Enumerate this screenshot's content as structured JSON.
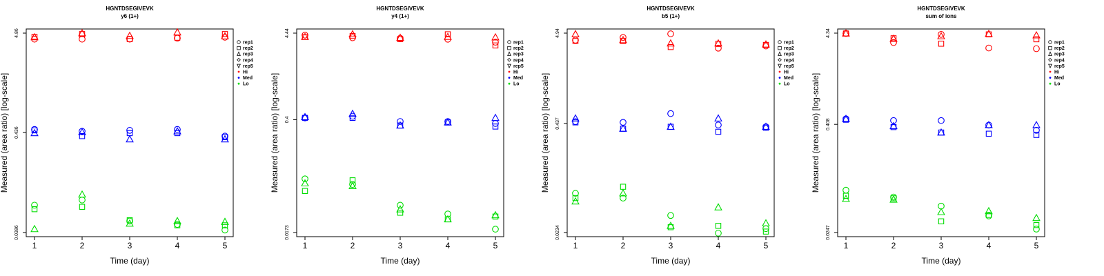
{
  "colors": {
    "Hi": "#ff0000",
    "Med": "#0000ff",
    "Lo": "#00dd00",
    "axis": "#000000"
  },
  "chart_data": [
    {
      "type": "scatter",
      "title": "HGNTDSEGIVEVK",
      "subtitle": "y6 (1+)",
      "xlabel": "Time (day)",
      "ylabel": "Measured (area ratio) [log-scale]",
      "x_ticks": [
        "1",
        "2",
        "3",
        "4",
        "5"
      ],
      "y_ticks": [
        "0.0386",
        "0.436",
        "4.86"
      ],
      "ylim": [
        0.0386,
        4.86
      ],
      "legend": {
        "position": "right",
        "entries": [
          {
            "label": "rep1",
            "marker": "circle"
          },
          {
            "label": "rep2",
            "marker": "square"
          },
          {
            "label": "rep3",
            "marker": "triangle-up"
          },
          {
            "label": "rep4",
            "marker": "diamond"
          },
          {
            "label": "rep5",
            "marker": "triangle-down"
          },
          {
            "label": "Hi",
            "marker": "dot",
            "color": "Hi"
          },
          {
            "label": "Med",
            "marker": "dot",
            "color": "Med"
          },
          {
            "label": "Lo",
            "marker": "dot",
            "color": "Lo"
          }
        ]
      },
      "series": [
        {
          "group": "Hi",
          "rep": "rep1",
          "values": [
            4.2,
            4.2,
            4.2,
            4.3,
            4.4
          ]
        },
        {
          "group": "Hi",
          "rep": "rep2",
          "values": [
            4.45,
            4.75,
            4.2,
            4.35,
            4.75
          ]
        },
        {
          "group": "Hi",
          "rep": "rep3",
          "values": [
            4.4,
            4.85,
            4.55,
            4.95,
            4.5
          ]
        },
        {
          "group": "Med",
          "rep": "rep1",
          "values": [
            0.47,
            0.45,
            0.46,
            0.47,
            0.4
          ]
        },
        {
          "group": "Med",
          "rep": "rep2",
          "values": [
            0.46,
            0.4,
            0.43,
            0.43,
            0.39
          ]
        },
        {
          "group": "Med",
          "rep": "rep3",
          "values": [
            0.43,
            0.44,
            0.37,
            0.45,
            0.37
          ]
        },
        {
          "group": "Lo",
          "rep": "rep1",
          "values": [
            0.075,
            0.085,
            0.051,
            0.047,
            0.041
          ]
        },
        {
          "group": "Lo",
          "rep": "rep2",
          "values": [
            0.068,
            0.072,
            0.052,
            0.046,
            0.046
          ]
        },
        {
          "group": "Lo",
          "rep": "rep3",
          "values": [
            0.042,
            0.097,
            0.048,
            0.051,
            0.05
          ]
        }
      ]
    },
    {
      "type": "scatter",
      "title": "HGNTDSEGIVEVK",
      "subtitle": "y4 (1+)",
      "xlabel": "Time (day)",
      "ylabel": "Measured (area ratio) [log-scale]",
      "x_ticks": [
        "1",
        "2",
        "3",
        "4",
        "5"
      ],
      "y_ticks": [
        "0.0173",
        "0.4",
        "4.44"
      ],
      "ylim": [
        0.0173,
        4.44
      ],
      "legend": {
        "position": "right",
        "entries": [
          {
            "label": "rep1",
            "marker": "circle"
          },
          {
            "label": "rep2",
            "marker": "square"
          },
          {
            "label": "rep3",
            "marker": "triangle-up"
          },
          {
            "label": "rep4",
            "marker": "diamond"
          },
          {
            "label": "rep5",
            "marker": "triangle-down"
          },
          {
            "label": "Hi",
            "marker": "dot",
            "color": "Hi"
          },
          {
            "label": "Med",
            "marker": "dot",
            "color": "Med"
          },
          {
            "label": "Lo",
            "marker": "dot",
            "color": "Lo"
          }
        ]
      },
      "series": [
        {
          "group": "Hi",
          "rep": "rep1",
          "values": [
            4.2,
            3.9,
            3.85,
            3.75,
            3.45
          ]
        },
        {
          "group": "Hi",
          "rep": "rep2",
          "values": [
            4.0,
            4.1,
            3.75,
            4.3,
            3.15
          ]
        },
        {
          "group": "Hi",
          "rep": "rep3",
          "values": [
            4.0,
            4.3,
            3.9,
            4.0,
            3.95
          ]
        },
        {
          "group": "Med",
          "rep": "rep1",
          "values": [
            0.42,
            0.44,
            0.38,
            0.38,
            0.36
          ]
        },
        {
          "group": "Med",
          "rep": "rep2",
          "values": [
            0.42,
            0.42,
            0.34,
            0.37,
            0.33
          ]
        },
        {
          "group": "Med",
          "rep": "rep3",
          "values": [
            0.43,
            0.47,
            0.34,
            0.37,
            0.42
          ]
        },
        {
          "group": "Lo",
          "rep": "rep1",
          "values": [
            0.077,
            0.066,
            0.037,
            0.029,
            0.019
          ]
        },
        {
          "group": "Lo",
          "rep": "rep2",
          "values": [
            0.055,
            0.074,
            0.03,
            0.025,
            0.027
          ]
        },
        {
          "group": "Lo",
          "rep": "rep3",
          "values": [
            0.068,
            0.063,
            0.033,
            0.025,
            0.028
          ]
        }
      ]
    },
    {
      "type": "scatter",
      "title": "HGNTDSEGIVEVK",
      "subtitle": "b5 (1+)",
      "xlabel": "Time (day)",
      "ylabel": "Measured (area ratio) [log-scale]",
      "x_ticks": [
        "1",
        "2",
        "3",
        "4",
        "5"
      ],
      "y_ticks": [
        "0.0234",
        "0.437",
        "4.94"
      ],
      "ylim": [
        0.0234,
        4.94
      ],
      "legend": {
        "position": "right",
        "entries": [
          {
            "label": "rep1",
            "marker": "circle"
          },
          {
            "label": "rep2",
            "marker": "square"
          },
          {
            "label": "rep3",
            "marker": "triangle-up"
          },
          {
            "label": "rep4",
            "marker": "diamond"
          },
          {
            "label": "rep5",
            "marker": "triangle-down"
          },
          {
            "label": "Hi",
            "marker": "dot",
            "color": "Hi"
          },
          {
            "label": "Med",
            "marker": "dot",
            "color": "Med"
          },
          {
            "label": "Lo",
            "marker": "dot",
            "color": "Lo"
          }
        ]
      },
      "series": [
        {
          "group": "Hi",
          "rep": "rep1",
          "values": [
            4.1,
            4.4,
            4.85,
            3.3,
            3.5
          ]
        },
        {
          "group": "Hi",
          "rep": "rep2",
          "values": [
            4.0,
            4.0,
            3.4,
            3.7,
            3.6
          ]
        },
        {
          "group": "Hi",
          "rep": "rep3",
          "values": [
            4.8,
            4.1,
            3.75,
            3.75,
            3.65
          ]
        },
        {
          "group": "Med",
          "rep": "rep1",
          "values": [
            0.46,
            0.45,
            0.57,
            0.42,
            0.4
          ]
        },
        {
          "group": "Med",
          "rep": "rep2",
          "values": [
            0.45,
            0.38,
            0.4,
            0.35,
            0.39
          ]
        },
        {
          "group": "Med",
          "rep": "rep3",
          "values": [
            0.5,
            0.38,
            0.4,
            0.5,
            0.4
          ]
        },
        {
          "group": "Lo",
          "rep": "rep1",
          "values": [
            0.067,
            0.059,
            0.037,
            0.023,
            0.026
          ]
        },
        {
          "group": "Lo",
          "rep": "rep2",
          "values": [
            0.059,
            0.08,
            0.027,
            0.028,
            0.024
          ]
        },
        {
          "group": "Lo",
          "rep": "rep3",
          "values": [
            0.054,
            0.067,
            0.028,
            0.046,
            0.03
          ]
        }
      ]
    },
    {
      "type": "scatter",
      "title": "HGNTDSEGIVEVK",
      "subtitle": "sum of ions",
      "xlabel": "Time (day)",
      "ylabel": "Measured (area ratio) [log-scale]",
      "x_ticks": [
        "1",
        "2",
        "3",
        "4",
        "5"
      ],
      "y_ticks": [
        "0.0247",
        "0.408",
        "4.34"
      ],
      "ylim": [
        0.0247,
        4.34
      ],
      "legend": {
        "position": "right",
        "entries": [
          {
            "label": "rep1",
            "marker": "circle"
          },
          {
            "label": "rep2",
            "marker": "square"
          },
          {
            "label": "rep3",
            "marker": "triangle-up"
          },
          {
            "label": "rep4",
            "marker": "diamond"
          },
          {
            "label": "rep5",
            "marker": "triangle-down"
          },
          {
            "label": "Hi",
            "marker": "dot",
            "color": "Hi"
          },
          {
            "label": "Med",
            "marker": "dot",
            "color": "Med"
          },
          {
            "label": "Lo",
            "marker": "dot",
            "color": "Lo"
          }
        ]
      },
      "series": [
        {
          "group": "Hi",
          "rep": "rep1",
          "values": [
            4.3,
            3.4,
            4.2,
            2.95,
            2.9
          ]
        },
        {
          "group": "Hi",
          "rep": "rep2",
          "values": [
            4.3,
            3.8,
            3.3,
            4.2,
            3.7
          ]
        },
        {
          "group": "Hi",
          "rep": "rep3",
          "values": [
            4.3,
            3.75,
            4.0,
            4.25,
            4.1
          ]
        },
        {
          "group": "Med",
          "rep": "rep1",
          "values": [
            0.47,
            0.45,
            0.45,
            0.4,
            0.35
          ]
        },
        {
          "group": "Med",
          "rep": "rep2",
          "values": [
            0.46,
            0.38,
            0.33,
            0.32,
            0.31
          ]
        },
        {
          "group": "Med",
          "rep": "rep3",
          "values": [
            0.47,
            0.39,
            0.33,
            0.4,
            0.4
          ]
        },
        {
          "group": "Lo",
          "rep": "rep1",
          "values": [
            0.074,
            0.062,
            0.049,
            0.038,
            0.027
          ]
        },
        {
          "group": "Lo",
          "rep": "rep2",
          "values": [
            0.064,
            0.06,
            0.033,
            0.039,
            0.03
          ]
        },
        {
          "group": "Lo",
          "rep": "rep3",
          "values": [
            0.059,
            0.058,
            0.042,
            0.043,
            0.036
          ]
        }
      ]
    }
  ]
}
